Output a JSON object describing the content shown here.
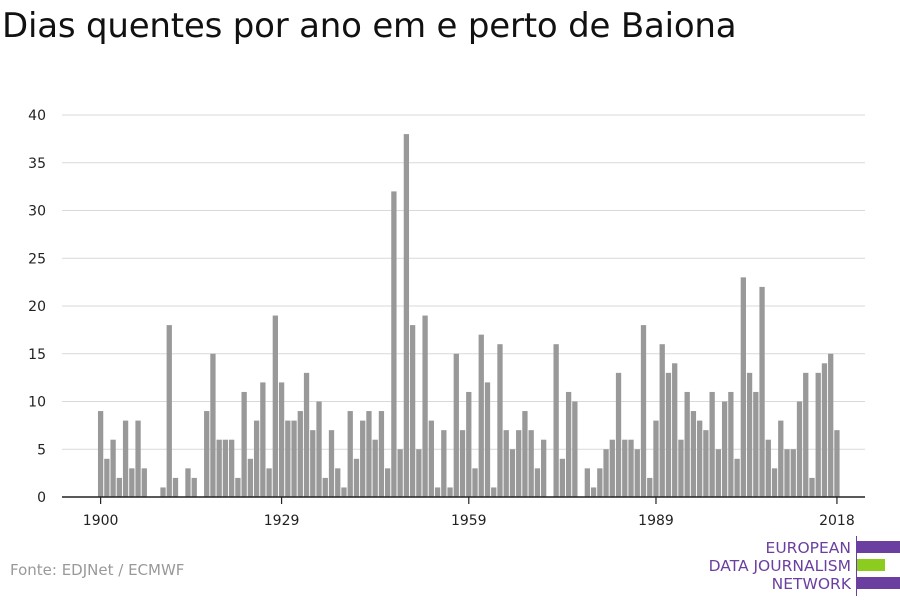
{
  "title": "Dias quentes por ano em e perto de Baiona",
  "source": "Fonte: EDJNet / ECMWF",
  "logo": {
    "line1": "EUROPEAN",
    "line2": "DATA JOURNALISM",
    "line3": "NETWORK",
    "colors": {
      "text": "#6b3fa0",
      "accent_green": "#8ccc1f",
      "accent_purple": "#6b3fa0"
    }
  },
  "chart_data": {
    "type": "bar",
    "title": "Dias quentes por ano em e perto de Baiona",
    "x_start": 1900,
    "x_end": 2019,
    "ylim": [
      0,
      40
    ],
    "yticks": [
      0,
      5,
      10,
      15,
      20,
      25,
      30,
      35,
      40
    ],
    "xticks": [
      1900,
      1929,
      1959,
      1989,
      2018
    ],
    "grid": true,
    "bar_color": "#999999",
    "values": [
      9,
      4,
      6,
      2,
      8,
      3,
      8,
      3,
      0,
      0,
      1,
      18,
      2,
      0,
      3,
      2,
      0,
      9,
      15,
      6,
      6,
      6,
      2,
      11,
      4,
      8,
      12,
      3,
      19,
      12,
      8,
      8,
      9,
      13,
      7,
      10,
      2,
      7,
      3,
      1,
      9,
      4,
      8,
      9,
      6,
      9,
      3,
      32,
      5,
      38,
      18,
      5,
      19,
      8,
      1,
      7,
      1,
      15,
      7,
      11,
      3,
      17,
      12,
      1,
      16,
      7,
      5,
      7,
      9,
      7,
      3,
      6,
      0,
      16,
      4,
      11,
      10,
      0,
      3,
      1,
      3,
      5,
      6,
      13,
      6,
      6,
      5,
      18,
      2,
      8,
      16,
      13,
      14,
      6,
      11,
      9,
      8,
      7,
      11,
      5,
      10,
      11,
      4,
      23,
      13,
      11,
      22,
      6,
      3,
      8,
      5,
      5,
      10,
      13,
      2,
      13,
      14,
      15,
      7
    ]
  }
}
